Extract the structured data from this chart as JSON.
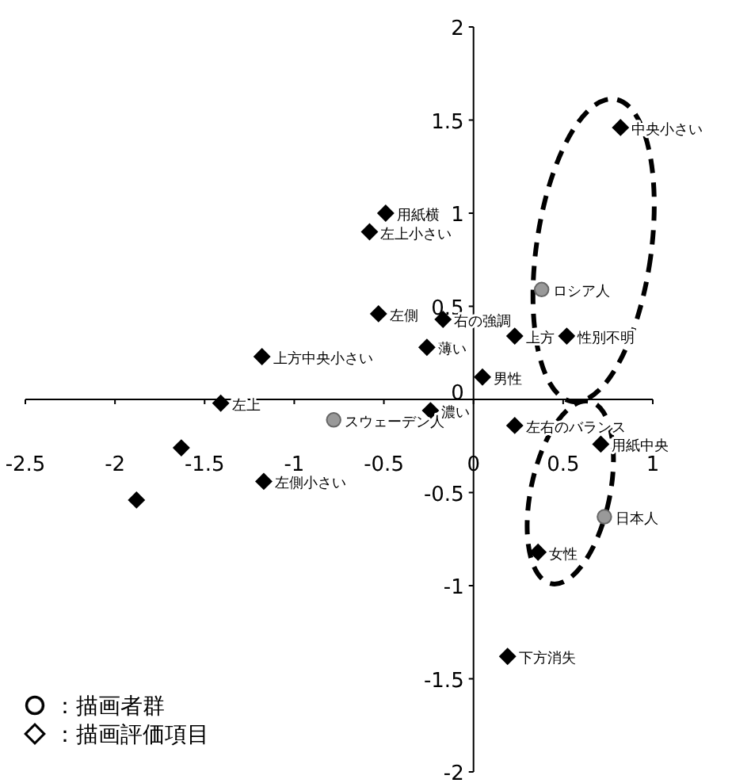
{
  "chart_data": {
    "type": "scatter",
    "xlim": [
      -2.5,
      1
    ],
    "ylim": [
      -2,
      2
    ],
    "xticks": [
      -2.5,
      -2,
      -1.5,
      -1,
      -0.5,
      0,
      0.5,
      1
    ],
    "yticks": [
      -2,
      -1.5,
      -1,
      -0.5,
      0,
      0.5,
      1,
      1.5,
      2
    ],
    "grid": false,
    "ref_lines": [
      {
        "axis": "y",
        "value": 0
      }
    ],
    "legend": "bottom left",
    "series": [
      {
        "name": "：描画者群",
        "color": "#999999",
        "marker": "circle",
        "x": [
          0.38,
          -0.78,
          0.73
        ],
        "values": [
          0.59,
          -0.11,
          -0.63
        ]
      },
      {
        "name": "：描画評価項目",
        "color": "#000000",
        "marker": "diamond",
        "x": [
          0.82,
          -0.49,
          -0.58,
          -0.53,
          -0.17,
          -0.26,
          -1.18,
          0.23,
          0.52,
          0.05,
          -1.41,
          -0.24,
          0.23,
          0.71,
          -1.63,
          -1.88,
          -1.17,
          0.36,
          0.19
        ],
        "values": [
          1.46,
          1.0,
          0.9,
          0.46,
          0.43,
          0.28,
          0.23,
          0.34,
          0.34,
          0.12,
          -0.02,
          -0.06,
          -0.14,
          -0.24,
          -0.26,
          -0.54,
          -0.44,
          -0.82,
          -1.38
        ]
      }
    ],
    "annotations": [
      {
        "text": "ロシア人",
        "x": 0.38,
        "y": 0.59
      },
      {
        "text": "スウェーデン人",
        "x": -0.78,
        "y": -0.11
      },
      {
        "text": "日本人",
        "x": 0.73,
        "y": -0.63
      },
      {
        "text": "中央小さい",
        "x": 0.82,
        "y": 1.46
      },
      {
        "text": "用紙横",
        "x": -0.49,
        "y": 1.0
      },
      {
        "text": "左上小さい",
        "x": -0.58,
        "y": 0.9
      },
      {
        "text": "左側",
        "x": -0.53,
        "y": 0.46
      },
      {
        "text": "右の強調",
        "x": -0.17,
        "y": 0.43
      },
      {
        "text": "薄い",
        "x": -0.26,
        "y": 0.28
      },
      {
        "text": "上方中央小さい",
        "x": -1.18,
        "y": 0.23
      },
      {
        "text": "上方",
        "x": 0.23,
        "y": 0.34
      },
      {
        "text": "性別不明",
        "x": 0.52,
        "y": 0.34
      },
      {
        "text": "男性",
        "x": 0.05,
        "y": 0.12
      },
      {
        "text": "左上",
        "x": -1.41,
        "y": -0.02
      },
      {
        "text": "濃い",
        "x": -0.24,
        "y": -0.06
      },
      {
        "text": "左右のバランス",
        "x": 0.23,
        "y": -0.14
      },
      {
        "text": "用紙中央",
        "x": 0.71,
        "y": -0.24
      },
      {
        "text": "左側小さい",
        "x": -1.17,
        "y": -0.44
      },
      {
        "text": "女性",
        "x": 0.36,
        "y": -0.82
      },
      {
        "text": "下方消失",
        "x": 0.19,
        "y": -1.38
      }
    ]
  }
}
